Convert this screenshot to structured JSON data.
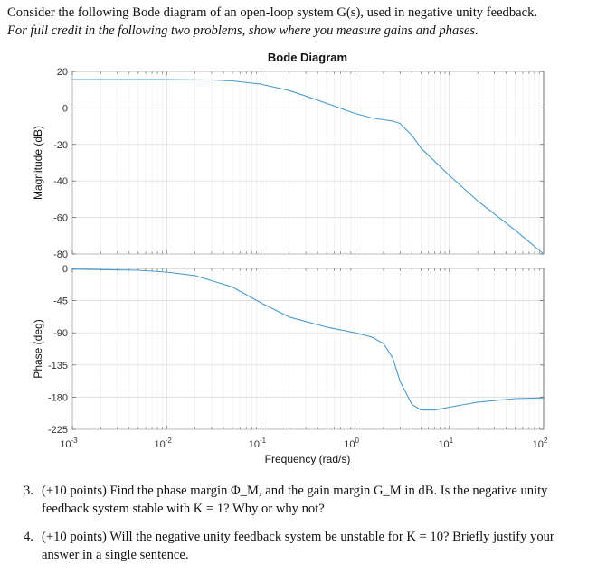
{
  "intro": {
    "line1": "Consider the following Bode diagram of an open-loop system G(s), used in negative unity feedback.",
    "line2": "For full credit in the following two problems, show where you measure gains and phases."
  },
  "chart_data": {
    "type": "line",
    "title": "Bode Diagram",
    "xlabel": "Frequency (rad/s)",
    "x_scale": "log",
    "xlim": [
      0.001,
      100
    ],
    "x_ticks": [
      0.001,
      0.01,
      0.1,
      1,
      10,
      100
    ],
    "x_tick_labels": [
      {
        "base": "10",
        "exp": "-3"
      },
      {
        "base": "10",
        "exp": "-2"
      },
      {
        "base": "10",
        "exp": "-1"
      },
      {
        "base": "10",
        "exp": "0"
      },
      {
        "base": "10",
        "exp": "1"
      },
      {
        "base": "10",
        "exp": "2"
      }
    ],
    "grid": true,
    "color": "#4a9bd0",
    "magnitude": {
      "ylabel": "Magnitude (dB)",
      "ylim": [
        -80,
        20
      ],
      "y_ticks": [
        20,
        0,
        -20,
        -40,
        -60,
        -80
      ],
      "w": [
        0.001,
        0.01,
        0.03,
        0.05,
        0.1,
        0.2,
        0.3,
        0.5,
        1,
        1.5,
        2,
        2.5,
        3,
        4,
        5,
        10,
        20,
        50,
        100
      ],
      "db": [
        15.5,
        15.5,
        15.3,
        14.8,
        13,
        9.5,
        6.5,
        2.5,
        -3,
        -5.5,
        -6.5,
        -7.2,
        -8.5,
        -15,
        -22,
        -37,
        -51,
        -67,
        -80
      ]
    },
    "phase": {
      "ylabel": "Phase (deg)",
      "ylim": [
        -225,
        0
      ],
      "y_ticks": [
        0,
        -45,
        -90,
        -135,
        -180,
        -225
      ],
      "w": [
        0.001,
        0.005,
        0.01,
        0.02,
        0.05,
        0.1,
        0.2,
        0.5,
        1,
        1.5,
        2,
        2.5,
        3,
        4,
        5,
        7,
        10,
        20,
        50,
        100
      ],
      "deg": [
        -1,
        -2.5,
        -5,
        -10,
        -26,
        -48,
        -68,
        -82,
        -90,
        -96,
        -105,
        -125,
        -158,
        -190,
        -198,
        -198,
        -194,
        -187,
        -182,
        -181
      ]
    }
  },
  "questions": [
    {
      "num": "3.",
      "text": "(+10 points) Find the phase margin Φ_M, and the gain margin G_M in dB. Is the negative unity feedback system stable with K = 1? Why or why not?"
    },
    {
      "num": "4.",
      "text": "(+10 points) Will the negative unity feedback system be unstable for K = 10? Briefly justify your answer in a single sentence."
    }
  ]
}
